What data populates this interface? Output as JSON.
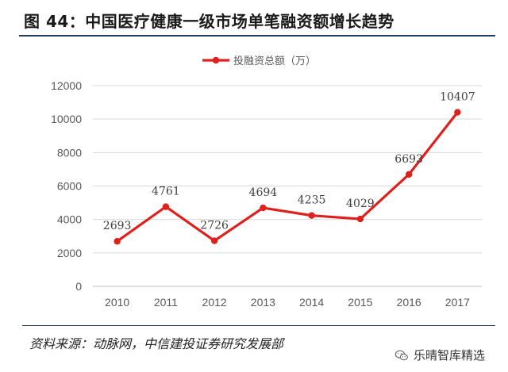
{
  "figure": {
    "title": "图 44：中国医疗健康一级市场单笔融资额增长趋势",
    "source": "资料来源：动脉网，中信建投证券研究发展部",
    "watermark": "乐晴智库精选",
    "watermark_icon": "wechat-icon"
  },
  "colors": {
    "series": "#e0201d",
    "grid": "#d9d9d9",
    "axis": "#bfbfbf",
    "rule": "#1f3a5a"
  },
  "chart_data": {
    "type": "line",
    "title": "",
    "xlabel": "",
    "ylabel": "",
    "categories": [
      "2010",
      "2011",
      "2012",
      "2013",
      "2014",
      "2015",
      "2016",
      "2017"
    ],
    "series": [
      {
        "name": "投融资总额（万）",
        "values": [
          2693,
          4761,
          2726,
          4694,
          4235,
          4029,
          6693,
          10407
        ]
      }
    ],
    "ylim": [
      0,
      12000
    ],
    "yticks": [
      0,
      2000,
      4000,
      6000,
      8000,
      10000,
      12000
    ],
    "grid": true,
    "legend": "top-center",
    "data_labels": true
  }
}
